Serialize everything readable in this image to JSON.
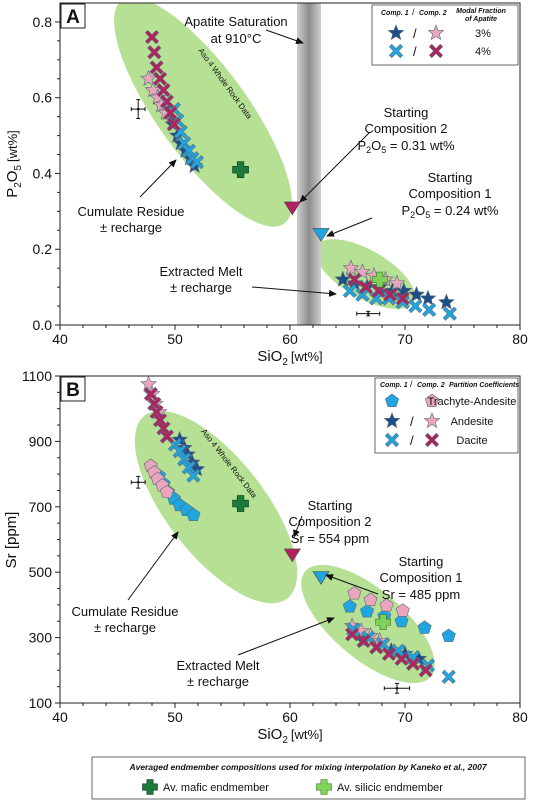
{
  "colors": {
    "blue": "#1fa5e0",
    "blue_dark": "#1b4f8a",
    "pink": "#e9a6bd",
    "magenta": "#b0235f",
    "green_fill": "#a9dc82",
    "green_dark": "#1b7a3a",
    "green_light": "#7fd35a",
    "sat_band": "#9a9a9a"
  },
  "chart_data": [
    {
      "type": "scatter",
      "panel_label": "A",
      "xlabel_main": "SiO",
      "xlabel_sub": "2",
      "xlabel_unit": "[wt%]",
      "ylabel_main": "P",
      "ylabel_sub1": "2",
      "ylabel_mid": "O",
      "ylabel_sub2": "5",
      "ylabel_unit": "[wt%]",
      "xlim": [
        40,
        80
      ],
      "ylim": [
        0,
        0.85
      ],
      "xticks": [
        "40",
        "50",
        "60",
        "70",
        "80"
      ],
      "yticks": [
        "0.0",
        "0.2",
        "0.4",
        "0.6",
        "0.8"
      ],
      "legend": {
        "head_c1": "Comp. 1",
        "head_sep": "/",
        "head_c2": "Comp. 2",
        "head_title1": "Modal Fraction",
        "head_title2": "of Apatite",
        "rows": [
          {
            "marker": "star",
            "label": "3%"
          },
          {
            "marker": "x",
            "label": "4%"
          }
        ]
      },
      "ellipse_label": "Aso 4 Whole Rock Data",
      "annotations": {
        "saturation_1": "Apatite Saturation",
        "saturation_2": "at 910°C",
        "sc2_1": "Starting",
        "sc2_2": "Composition 2",
        "sc2_3a": "P",
        "sc2_3b": "2",
        "sc2_3c": "O",
        "sc2_3d": "5",
        "sc2_3e": " = 0.31 wt%",
        "sc1_1": "Starting",
        "sc1_2": "Composition 1",
        "sc1_3a": "P",
        "sc1_3b": "2",
        "sc1_3c": "O",
        "sc1_3d": "5",
        "sc1_3e": " = 0.24 wt%",
        "residue_1": "Cumulate Residue",
        "residue_2": "± recharge",
        "melt_1": "Extracted Melt",
        "melt_2": "± recharge"
      },
      "starting_compositions": [
        {
          "comp": 1,
          "x": 62.7,
          "y": 0.24
        },
        {
          "comp": 2,
          "x": 60.2,
          "y": 0.31
        }
      ],
      "mafic_endmember": {
        "x": 55.7,
        "y": 0.41
      },
      "silicic_endmember": {
        "x": 67.8,
        "y": 0.12
      },
      "error_bars": [
        {
          "x": 46.8,
          "y": 0.57,
          "xerr": 0.6,
          "yerr": 0.025
        },
        {
          "x": 66.8,
          "y": 0.03,
          "xerr": 1.0,
          "yerr": 0.006
        }
      ],
      "series": [
        {
          "marker": "star",
          "comp": 1,
          "points": [
            [
              49.4,
              0.56
            ],
            [
              49.8,
              0.53
            ],
            [
              50.2,
              0.5
            ],
            [
              50.5,
              0.48
            ],
            [
              50.9,
              0.46
            ],
            [
              51.3,
              0.44
            ],
            [
              51.7,
              0.42
            ],
            [
              64.6,
              0.12
            ],
            [
              65.6,
              0.11
            ],
            [
              66.7,
              0.1
            ],
            [
              67.8,
              0.1
            ],
            [
              68.9,
              0.09
            ],
            [
              69.9,
              0.09
            ],
            [
              71.0,
              0.08
            ],
            [
              72.0,
              0.07
            ],
            [
              73.6,
              0.06
            ]
          ]
        },
        {
          "marker": "star",
          "comp": 2,
          "points": [
            [
              47.7,
              0.65
            ],
            [
              48.1,
              0.62
            ],
            [
              48.5,
              0.6
            ],
            [
              48.8,
              0.58
            ],
            [
              49.2,
              0.56
            ],
            [
              65.3,
              0.15
            ],
            [
              66.3,
              0.14
            ],
            [
              67.3,
              0.13
            ],
            [
              68.3,
              0.12
            ],
            [
              69.3,
              0.11
            ]
          ]
        },
        {
          "marker": "x",
          "comp": 1,
          "points": [
            [
              49.9,
              0.57
            ],
            [
              50.2,
              0.54
            ],
            [
              50.5,
              0.51
            ],
            [
              50.8,
              0.48
            ],
            [
              51.2,
              0.46
            ],
            [
              51.5,
              0.44
            ],
            [
              51.9,
              0.43
            ],
            [
              65.2,
              0.09
            ],
            [
              66.3,
              0.08
            ],
            [
              67.5,
              0.07
            ],
            [
              68.6,
              0.07
            ],
            [
              69.8,
              0.06
            ],
            [
              70.9,
              0.05
            ],
            [
              72.1,
              0.04
            ],
            [
              73.9,
              0.03
            ]
          ]
        },
        {
          "marker": "x",
          "comp": 2,
          "points": [
            [
              48.0,
              0.76
            ],
            [
              48.2,
              0.72
            ],
            [
              48.4,
              0.68
            ],
            [
              48.7,
              0.65
            ],
            [
              49.0,
              0.62
            ],
            [
              49.3,
              0.59
            ],
            [
              49.6,
              0.56
            ],
            [
              49.9,
              0.53
            ],
            [
              65.6,
              0.12
            ],
            [
              66.6,
              0.1
            ],
            [
              67.7,
              0.09
            ],
            [
              68.7,
              0.08
            ],
            [
              69.8,
              0.07
            ]
          ]
        }
      ]
    },
    {
      "type": "scatter",
      "panel_label": "B",
      "xlabel_main": "SiO",
      "xlabel_sub": "2",
      "xlabel_unit": "[wt%]",
      "ylabel": "Sr [ppm]",
      "xlim": [
        40,
        80
      ],
      "ylim": [
        100,
        1100
      ],
      "xticks": [
        "40",
        "50",
        "60",
        "70",
        "80"
      ],
      "yticks": [
        "100",
        "300",
        "500",
        "700",
        "900",
        "1100"
      ],
      "legend": {
        "head_c1": "Comp. 1",
        "head_sep": "/",
        "head_c2": "Comp. 2",
        "head_title": "Partition Coefficients",
        "rows": [
          {
            "marker": "pentagon",
            "label": "Trachyte-Andesite"
          },
          {
            "marker": "star",
            "label": "Andesite"
          },
          {
            "marker": "x",
            "label": "Dacite"
          }
        ]
      },
      "ellipse_label": "Aso 4 Whole Rock Data",
      "annotations": {
        "sc2_1": "Starting",
        "sc2_2": "Composition 2",
        "sc2_3": "Sr = 554 ppm",
        "sc1_1": "Starting",
        "sc1_2": "Composition 1",
        "sc1_3": "Sr = 485 ppm",
        "residue_1": "Cumulate Residue",
        "residue_2": "± recharge",
        "melt_1": "Extracted Melt",
        "melt_2": "± recharge"
      },
      "starting_compositions": [
        {
          "comp": 1,
          "x": 62.7,
          "y": 485
        },
        {
          "comp": 2,
          "x": 60.2,
          "y": 554
        }
      ],
      "mafic_endmember": {
        "x": 55.7,
        "y": 710
      },
      "silicic_endmember": {
        "x": 68.1,
        "y": 347
      },
      "error_bars": [
        {
          "x": 46.8,
          "y": 775,
          "xerr": 0.6,
          "yerr": 18
        },
        {
          "x": 69.3,
          "y": 145,
          "xerr": 1.1,
          "yerr": 15
        }
      ],
      "series": [
        {
          "marker": "pentagon",
          "comp": 1,
          "points": [
            [
              48.6,
              795
            ],
            [
              49.0,
              770
            ],
            [
              49.4,
              745
            ],
            [
              49.9,
              725
            ],
            [
              50.4,
              705
            ],
            [
              51.0,
              690
            ],
            [
              51.6,
              675
            ],
            [
              65.2,
              395
            ],
            [
              66.7,
              380
            ],
            [
              68.2,
              365
            ],
            [
              69.7,
              350
            ],
            [
              71.7,
              330
            ],
            [
              73.8,
              305
            ]
          ]
        },
        {
          "marker": "pentagon",
          "comp": 2,
          "points": [
            [
              47.9,
              825
            ],
            [
              48.2,
              805
            ],
            [
              48.5,
              785
            ],
            [
              48.9,
              765
            ],
            [
              49.3,
              745
            ],
            [
              65.6,
              435
            ],
            [
              67.0,
              415
            ],
            [
              68.4,
              398
            ],
            [
              69.8,
              382
            ]
          ]
        },
        {
          "marker": "star",
          "comp": 1,
          "points": [
            [
              50.4,
              905
            ],
            [
              50.8,
              880
            ],
            [
              51.1,
              860
            ],
            [
              51.5,
              835
            ],
            [
              51.9,
              815
            ],
            [
              66.4,
              290
            ],
            [
              67.6,
              275
            ],
            [
              68.8,
              260
            ],
            [
              70.0,
              250
            ],
            [
              71.2,
              235
            ]
          ]
        },
        {
          "marker": "star",
          "comp": 2,
          "points": [
            [
              47.7,
              1075
            ],
            [
              48.0,
              1045
            ],
            [
              48.3,
              1015
            ],
            [
              48.6,
              990
            ],
            [
              65.4,
              335
            ],
            [
              66.2,
              320
            ],
            [
              67.0,
              305
            ],
            [
              67.8,
              290
            ]
          ]
        },
        {
          "marker": "x",
          "comp": 1,
          "points": [
            [
              50.0,
              890
            ],
            [
              50.4,
              870
            ],
            [
              50.8,
              845
            ],
            [
              51.2,
              820
            ],
            [
              51.6,
              795
            ],
            [
              65.5,
              325
            ],
            [
              66.8,
              300
            ],
            [
              68.1,
              280
            ],
            [
              69.4,
              260
            ],
            [
              70.7,
              240
            ],
            [
              72.0,
              215
            ],
            [
              73.8,
              180
            ]
          ]
        },
        {
          "marker": "x",
          "comp": 2,
          "points": [
            [
              47.9,
              1045
            ],
            [
              48.2,
              1015
            ],
            [
              48.4,
              990
            ],
            [
              48.7,
              965
            ],
            [
              49.0,
              940
            ],
            [
              49.3,
              915
            ],
            [
              65.4,
              310
            ],
            [
              66.4,
              290
            ],
            [
              67.5,
              270
            ],
            [
              68.6,
              250
            ],
            [
              69.7,
              235
            ],
            [
              70.7,
              220
            ],
            [
              71.8,
              200
            ]
          ]
        }
      ]
    }
  ],
  "footer": {
    "title": "Averaged endmember compositions used for mixing interpolation by Kaneko et al., 2007",
    "mafic": "Av. mafic endmember",
    "silicic": "Av. silicic endmember"
  }
}
